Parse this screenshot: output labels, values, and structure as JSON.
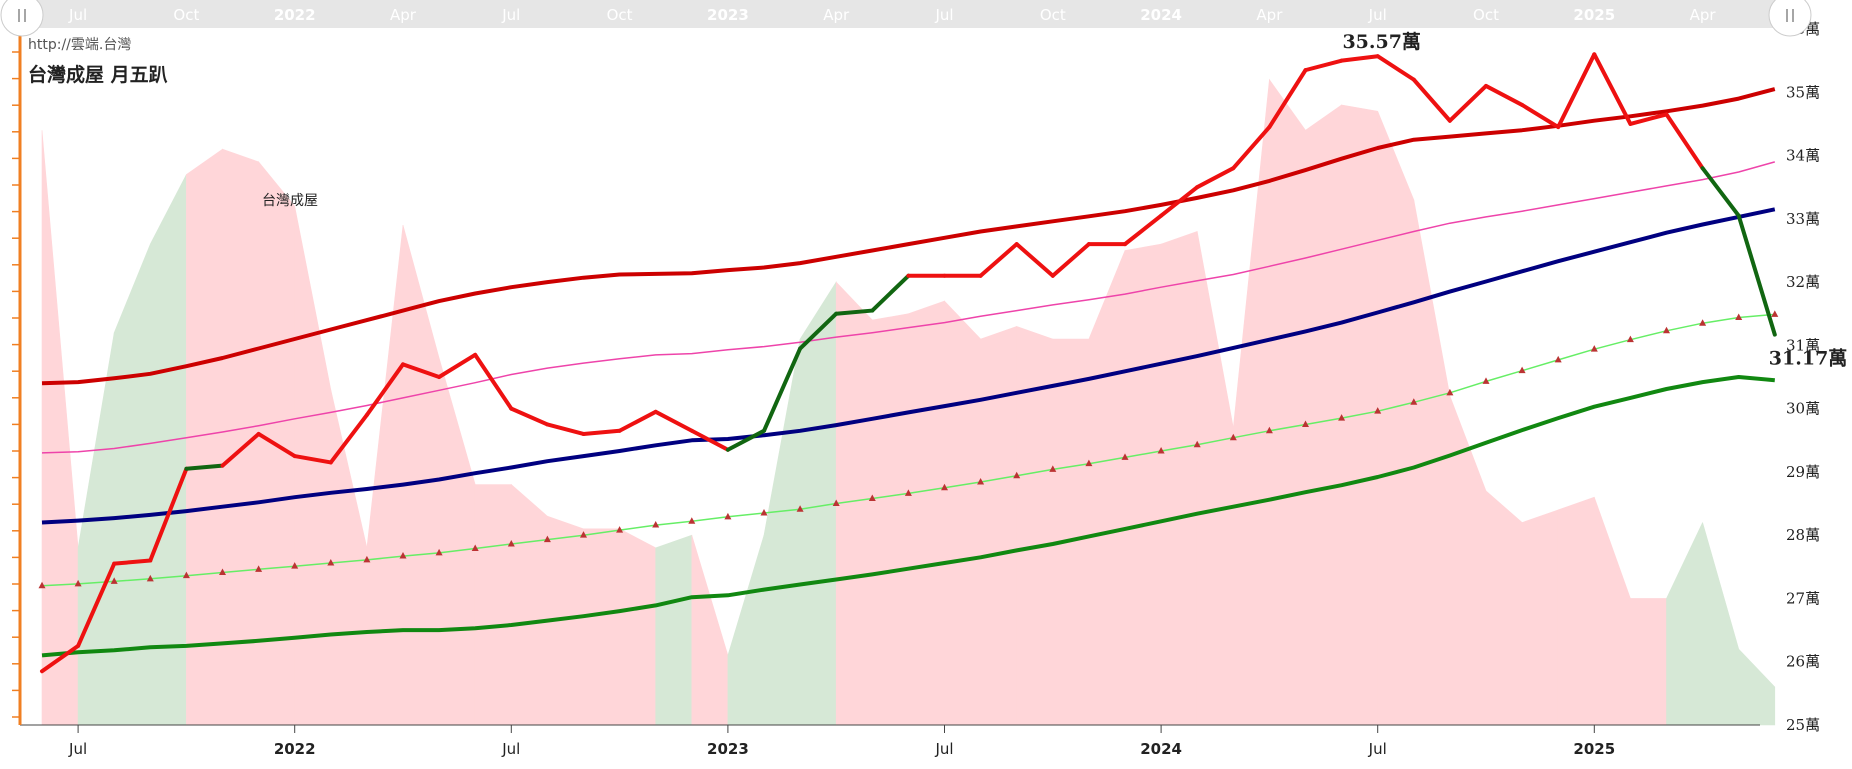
{
  "header": {
    "url": "http://雲端.台灣",
    "title": "台灣成屋 月五趴"
  },
  "colors": {
    "price_up": "#ee1111",
    "price_down": "#116611",
    "upper_band": "#cc0000",
    "mid_line": "#000080",
    "upper_mid": "#ee44aa",
    "lower_band": "#118811",
    "trend": "#66ee66",
    "trend_marker": "#bb3333",
    "area_pos": "#ffd6d9",
    "area_neg": "#d6e8d6",
    "axis_left": "#f07f22"
  },
  "chart_data": {
    "type": "line",
    "x_unit": "month",
    "y_unit": "萬",
    "ylim": [
      25,
      36
    ],
    "x_start": "2021-06",
    "y_ticks": [
      "25萬",
      "26萬",
      "27萬",
      "28萬",
      "29萬",
      "30萬",
      "31萬",
      "32萬",
      "33萬",
      "34萬",
      "35萬",
      "36萬"
    ],
    "x_ticks": [
      {
        "month": "2021-07",
        "label": "Jul",
        "bold": false
      },
      {
        "month": "2022-01",
        "label": "2022",
        "bold": true
      },
      {
        "month": "2022-07",
        "label": "Jul",
        "bold": false
      },
      {
        "month": "2023-01",
        "label": "2023",
        "bold": true
      },
      {
        "month": "2023-07",
        "label": "Jul",
        "bold": false
      },
      {
        "month": "2024-01",
        "label": "2024",
        "bold": true
      },
      {
        "month": "2024-07",
        "label": "Jul",
        "bold": false
      },
      {
        "month": "2025-01",
        "label": "2025",
        "bold": true
      }
    ],
    "navigator_ticks": [
      {
        "month": "2021-07",
        "label": "Jul",
        "bold": false
      },
      {
        "month": "2021-10",
        "label": "Oct",
        "bold": false
      },
      {
        "month": "2022-01",
        "label": "2022",
        "bold": true
      },
      {
        "month": "2022-04",
        "label": "Apr",
        "bold": false
      },
      {
        "month": "2022-07",
        "label": "Jul",
        "bold": false
      },
      {
        "month": "2022-10",
        "label": "Oct",
        "bold": false
      },
      {
        "month": "2023-01",
        "label": "2023",
        "bold": true
      },
      {
        "month": "2023-04",
        "label": "Apr",
        "bold": false
      },
      {
        "month": "2023-07",
        "label": "Jul",
        "bold": false
      },
      {
        "month": "2023-10",
        "label": "Oct",
        "bold": false
      },
      {
        "month": "2024-01",
        "label": "2024",
        "bold": true
      },
      {
        "month": "2024-04",
        "label": "Apr",
        "bold": false
      },
      {
        "month": "2024-07",
        "label": "Jul",
        "bold": false
      },
      {
        "month": "2024-10",
        "label": "Oct",
        "bold": false
      },
      {
        "month": "2025-01",
        "label": "2025",
        "bold": true
      },
      {
        "month": "2025-04",
        "label": "Apr",
        "bold": false
      }
    ],
    "area_label": "台灣成屋",
    "area_series": [
      34.4,
      27.8,
      31.2,
      32.6,
      33.7,
      34.1,
      33.9,
      33.2,
      30.3,
      27.8,
      32.9,
      30.8,
      28.8,
      28.8,
      28.3,
      28.1,
      28.1,
      27.8,
      28.0,
      26.1,
      28.0,
      31.1,
      32.0,
      31.4,
      31.5,
      31.7,
      31.1,
      31.3,
      31.1,
      31.1,
      32.5,
      32.6,
      32.8,
      29.7,
      35.2,
      34.4,
      34.8,
      34.7,
      33.3,
      30.2,
      28.7,
      28.2,
      28.4,
      28.6,
      27.0,
      27.0,
      28.2,
      26.2,
      25.6
    ],
    "area_sign": [
      1,
      -1,
      -1,
      -1,
      1,
      1,
      1,
      1,
      1,
      1,
      1,
      1,
      1,
      1,
      1,
      1,
      1,
      -1,
      1,
      -1,
      -1,
      -1,
      1,
      1,
      1,
      1,
      1,
      1,
      1,
      1,
      1,
      1,
      1,
      1,
      1,
      1,
      1,
      1,
      1,
      1,
      1,
      1,
      1,
      1,
      1,
      -1,
      -1,
      -1,
      -1
    ],
    "price": [
      25.85,
      26.25,
      27.55,
      27.6,
      29.05,
      29.1,
      29.6,
      29.25,
      29.15,
      29.9,
      30.7,
      30.5,
      30.85,
      30.0,
      29.75,
      29.6,
      29.65,
      29.95,
      29.65,
      29.35,
      29.65,
      30.95,
      31.5,
      31.55,
      32.1,
      32.1,
      32.1,
      32.6,
      32.1,
      32.6,
      32.6,
      33.05,
      33.5,
      33.8,
      34.45,
      35.35,
      35.5,
      35.57,
      35.2,
      34.55,
      35.1,
      34.8,
      34.45,
      35.6,
      34.5,
      34.65,
      33.8,
      33.05,
      31.17
    ],
    "price_trend": [
      1,
      1,
      1,
      1,
      -1,
      1,
      1,
      1,
      1,
      1,
      1,
      1,
      1,
      1,
      1,
      1,
      1,
      1,
      1,
      -1,
      -1,
      -1,
      -1,
      -1,
      1,
      1,
      1,
      1,
      1,
      1,
      1,
      1,
      1,
      1,
      1,
      1,
      1,
      1,
      1,
      1,
      1,
      1,
      1,
      1,
      1,
      1,
      -1,
      -1,
      -1
    ],
    "upper_band": [
      30.4,
      30.42,
      30.48,
      30.55,
      30.67,
      30.8,
      30.95,
      31.1,
      31.25,
      31.4,
      31.55,
      31.7,
      31.82,
      31.92,
      32.0,
      32.07,
      32.12,
      32.13,
      32.14,
      32.19,
      32.23,
      32.3,
      32.4,
      32.5,
      32.6,
      32.7,
      32.8,
      32.88,
      32.96,
      33.04,
      33.12,
      33.22,
      33.33,
      33.45,
      33.6,
      33.77,
      33.95,
      34.12,
      34.25,
      34.3,
      34.35,
      34.4,
      34.47,
      34.55,
      34.62,
      34.7,
      34.79,
      34.9,
      35.05
    ],
    "upper_mid": [
      29.3,
      29.32,
      29.37,
      29.45,
      29.54,
      29.63,
      29.73,
      29.84,
      29.94,
      30.05,
      30.17,
      30.29,
      30.41,
      30.54,
      30.64,
      30.72,
      30.79,
      30.85,
      30.87,
      30.93,
      30.98,
      31.05,
      31.13,
      31.2,
      31.28,
      31.36,
      31.46,
      31.55,
      31.64,
      31.72,
      31.81,
      31.92,
      32.02,
      32.12,
      32.25,
      32.38,
      32.52,
      32.66,
      32.8,
      32.93,
      33.03,
      33.12,
      33.22,
      33.32,
      33.42,
      33.52,
      33.62,
      33.74,
      33.9
    ],
    "mid_line": [
      28.2,
      28.23,
      28.27,
      28.32,
      28.38,
      28.45,
      28.52,
      28.6,
      28.67,
      28.73,
      28.8,
      28.88,
      28.98,
      29.07,
      29.17,
      29.25,
      29.33,
      29.42,
      29.5,
      29.52,
      29.58,
      29.65,
      29.74,
      29.84,
      29.94,
      30.04,
      30.14,
      30.25,
      30.36,
      30.47,
      30.59,
      30.71,
      30.83,
      30.96,
      31.09,
      31.22,
      31.36,
      31.52,
      31.68,
      31.85,
      32.01,
      32.17,
      32.33,
      32.48,
      32.63,
      32.78,
      32.91,
      33.03,
      33.15
    ],
    "trend": [
      27.2,
      27.23,
      27.27,
      27.31,
      27.36,
      27.41,
      27.46,
      27.51,
      27.56,
      27.61,
      27.67,
      27.72,
      27.79,
      27.86,
      27.93,
      28.0,
      28.08,
      28.16,
      28.22,
      28.29,
      28.35,
      28.41,
      28.5,
      28.58,
      28.66,
      28.75,
      28.84,
      28.94,
      29.04,
      29.13,
      29.23,
      29.33,
      29.43,
      29.54,
      29.65,
      29.75,
      29.85,
      29.96,
      30.1,
      30.25,
      30.43,
      30.6,
      30.77,
      30.94,
      31.09,
      31.23,
      31.35,
      31.44,
      31.49
    ],
    "lower_band": [
      26.1,
      26.15,
      26.18,
      26.23,
      26.25,
      26.29,
      26.33,
      26.38,
      26.43,
      26.47,
      26.5,
      26.5,
      26.53,
      26.58,
      26.65,
      26.72,
      26.8,
      26.89,
      27.02,
      27.05,
      27.14,
      27.22,
      27.3,
      27.38,
      27.47,
      27.56,
      27.65,
      27.76,
      27.86,
      27.98,
      28.1,
      28.22,
      28.34,
      28.45,
      28.56,
      28.68,
      28.79,
      28.92,
      29.07,
      29.26,
      29.46,
      29.66,
      29.85,
      30.03,
      30.17,
      30.31,
      30.42,
      30.5,
      30.45
    ],
    "annotations": [
      {
        "label": "35.57萬",
        "index": 37
      },
      {
        "label": "31.17萬",
        "index": 48
      }
    ]
  }
}
